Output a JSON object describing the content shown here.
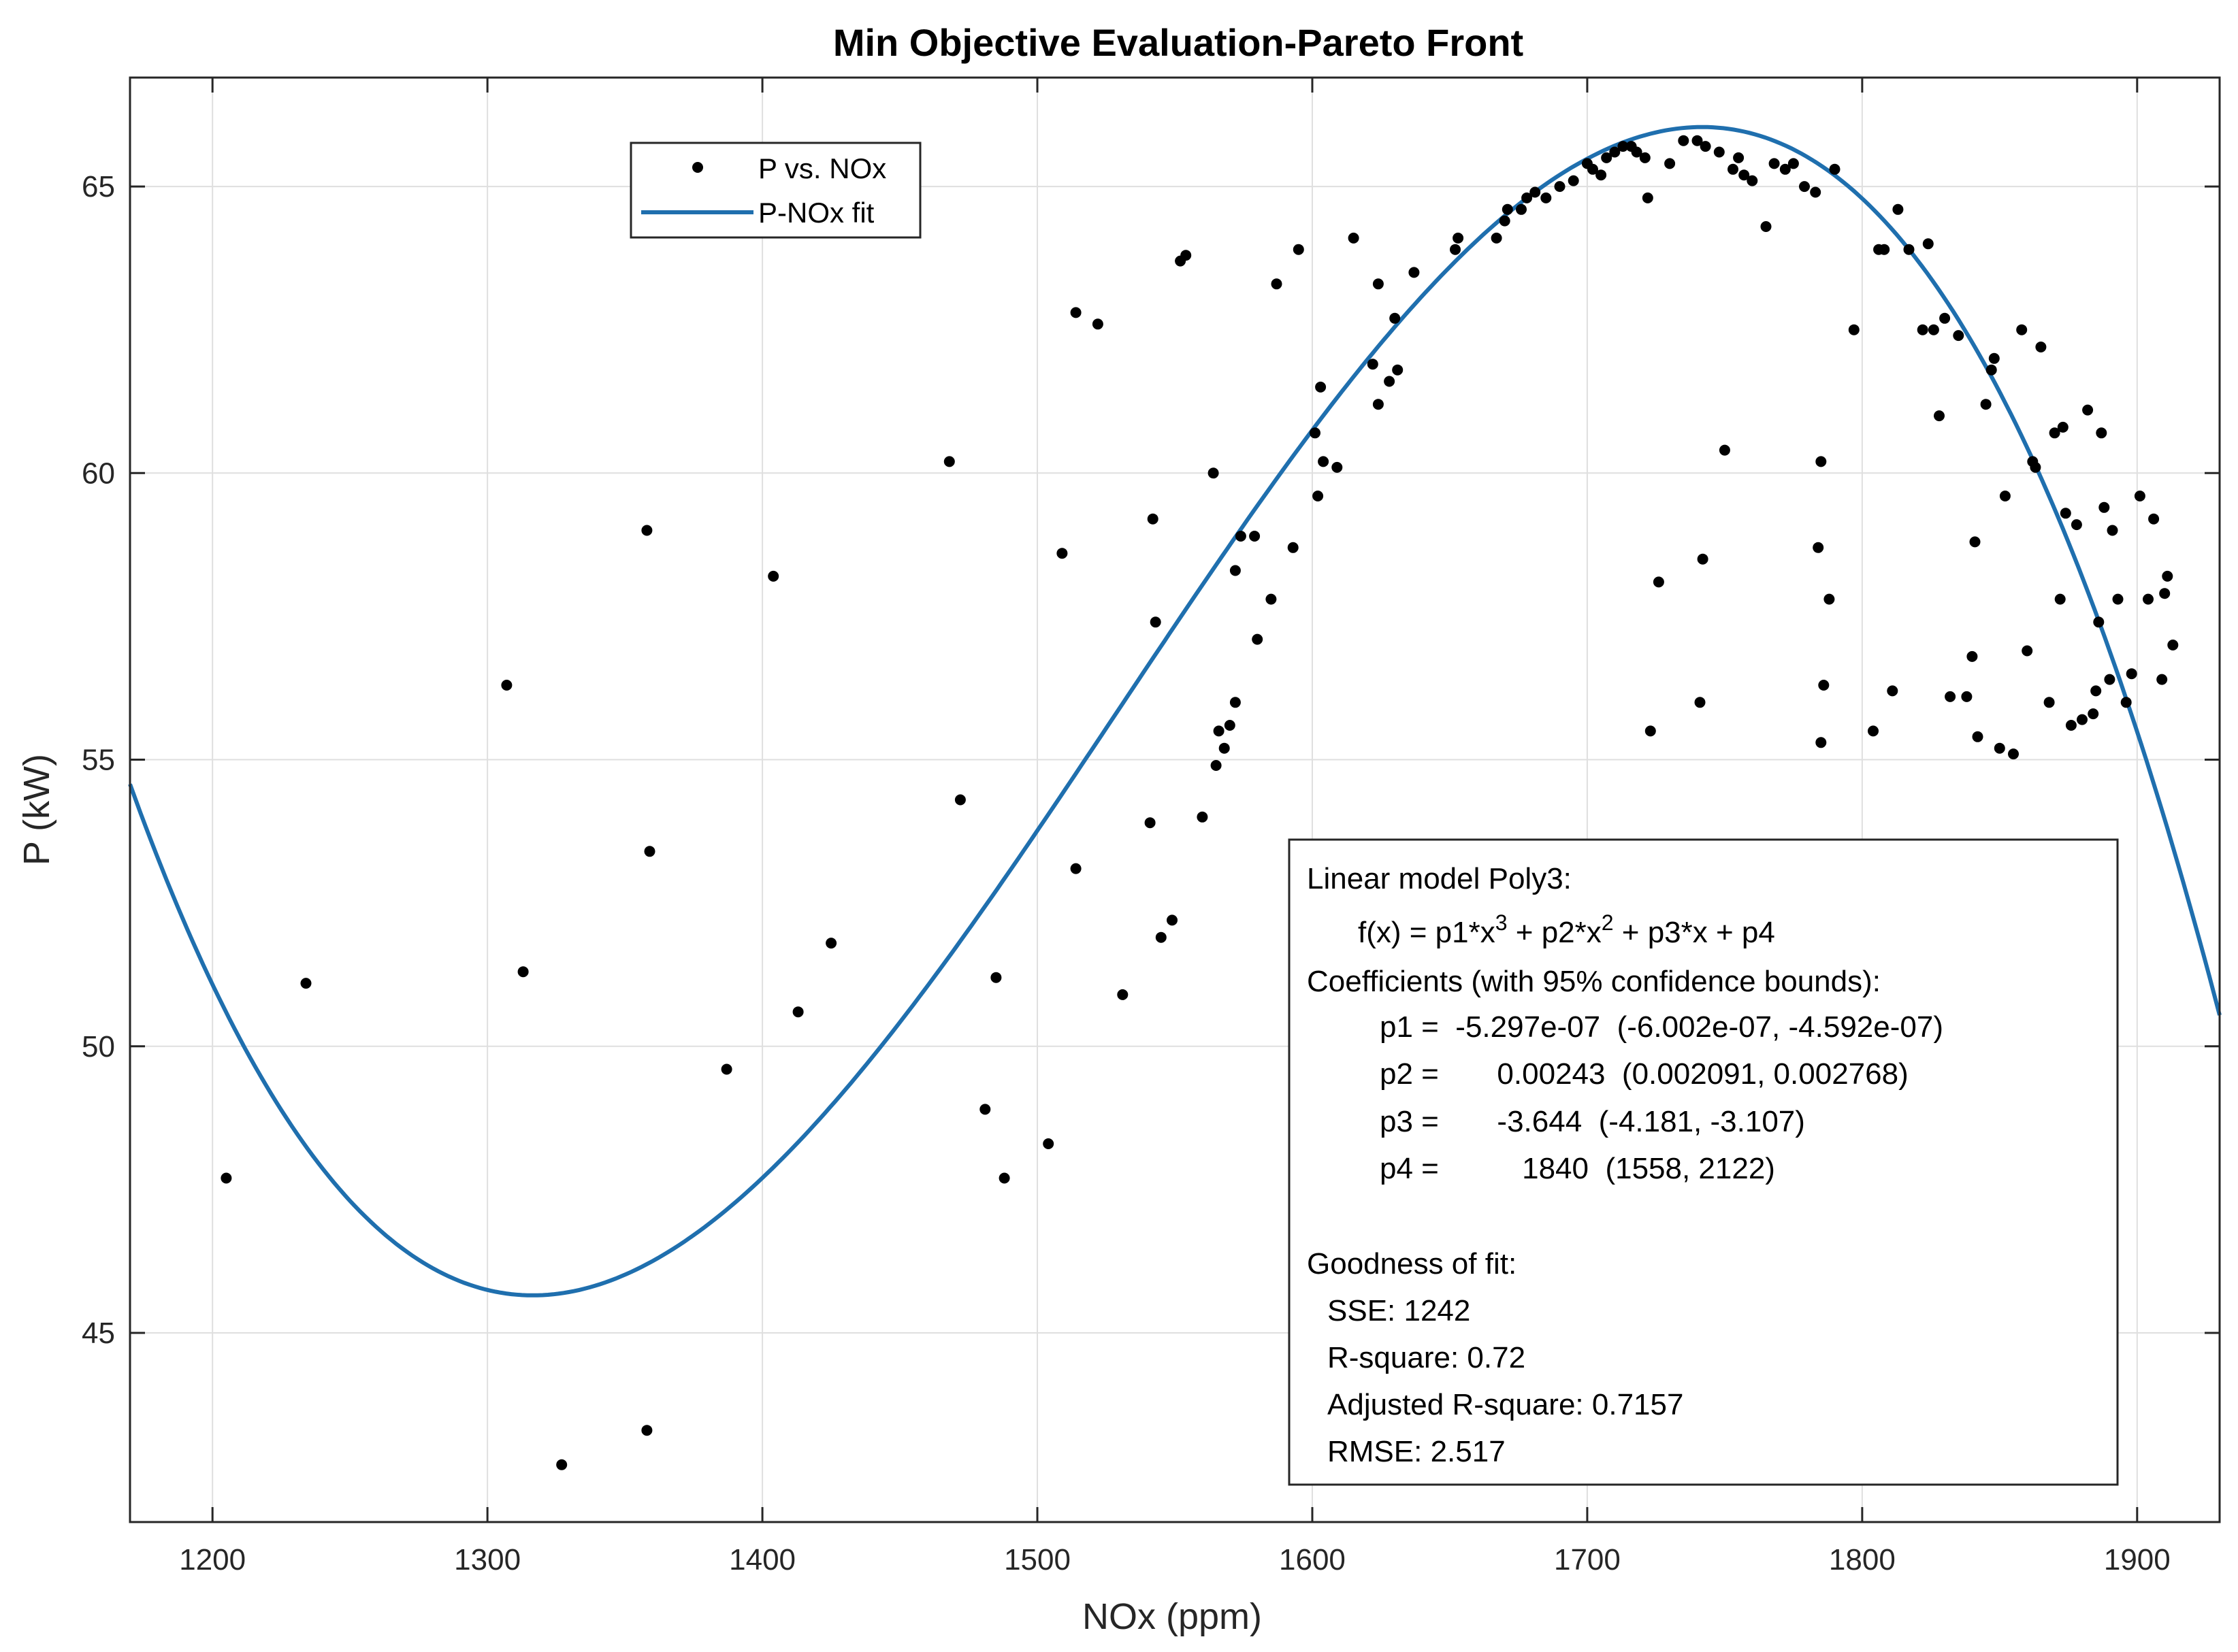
{
  "chart_data": {
    "type": "scatter",
    "title": "Min Objective Evaluation-Pareto Front",
    "xlabel": "NOx (ppm)",
    "ylabel": "P (kW)",
    "xlim": [
      1170,
      1930
    ],
    "ylim": [
      41.7,
      66.9
    ],
    "xticks": [
      "1200",
      "1300",
      "1400",
      "1500",
      "1600",
      "1700",
      "1800",
      "1900"
    ],
    "yticks": [
      "45",
      "50",
      "55",
      "60",
      "65"
    ],
    "grid": true,
    "legend": {
      "placement": "top-left",
      "entries": [
        {
          "label": "P vs. NOx",
          "marker": "dot"
        },
        {
          "label": "P-NOx fit",
          "marker": "line"
        }
      ]
    },
    "colors": {
      "scatter": "#000000",
      "fit": "#1f6fae"
    },
    "fit": {
      "model": "poly3",
      "coefficients": {
        "p1": -5.297e-07,
        "p2": 0.00243,
        "p3": -3.644,
        "p4": 1840
      }
    },
    "series": [
      {
        "name": "P vs. NOx",
        "points": [
          [
            1205,
            47.7
          ],
          [
            1234,
            51.1
          ],
          [
            1307,
            56.3
          ],
          [
            1313,
            51.3
          ],
          [
            1327,
            42.7
          ],
          [
            1358,
            43.3
          ],
          [
            1358,
            59.0
          ],
          [
            1359,
            53.4
          ],
          [
            1387,
            49.6
          ],
          [
            1404,
            58.2
          ],
          [
            1413,
            50.6
          ],
          [
            1425,
            51.8
          ],
          [
            1468,
            60.2
          ],
          [
            1472,
            54.3
          ],
          [
            1481,
            48.9
          ],
          [
            1485,
            51.2
          ],
          [
            1488,
            47.7
          ],
          [
            1504,
            48.3
          ],
          [
            1509,
            58.6
          ],
          [
            1514,
            53.1
          ],
          [
            1514,
            62.8
          ],
          [
            1522,
            62.6
          ],
          [
            1531,
            50.9
          ],
          [
            1541,
            53.9
          ],
          [
            1542,
            59.2
          ],
          [
            1543,
            57.4
          ],
          [
            1545,
            51.9
          ],
          [
            1549,
            52.2
          ],
          [
            1552,
            63.7
          ],
          [
            1554,
            63.8
          ],
          [
            1560,
            54.0
          ],
          [
            1564,
            60.0
          ],
          [
            1566,
            55.5
          ],
          [
            1565,
            54.9
          ],
          [
            1568,
            55.2
          ],
          [
            1570,
            55.6
          ],
          [
            1572,
            56.0
          ],
          [
            1572,
            58.3
          ],
          [
            1574,
            58.9
          ],
          [
            1579,
            58.9
          ],
          [
            1580,
            57.1
          ],
          [
            1585,
            57.8
          ],
          [
            1587,
            63.3
          ],
          [
            1593,
            58.7
          ],
          [
            1595,
            63.9
          ],
          [
            1601,
            60.7
          ],
          [
            1602,
            59.6
          ],
          [
            1603,
            61.5
          ],
          [
            1604,
            60.2
          ],
          [
            1609,
            60.1
          ],
          [
            1615,
            64.1
          ],
          [
            1622,
            61.9
          ],
          [
            1624,
            61.2
          ],
          [
            1624,
            63.3
          ],
          [
            1628,
            61.6
          ],
          [
            1630,
            62.7
          ],
          [
            1631,
            61.8
          ],
          [
            1637,
            63.5
          ],
          [
            1652,
            63.9
          ],
          [
            1653,
            64.1
          ],
          [
            1667,
            64.1
          ],
          [
            1670,
            64.4
          ],
          [
            1671,
            64.6
          ],
          [
            1676,
            64.6
          ],
          [
            1678,
            64.8
          ],
          [
            1681,
            64.9
          ],
          [
            1685,
            64.8
          ],
          [
            1690,
            65.0
          ],
          [
            1695,
            65.1
          ],
          [
            1700,
            65.4
          ],
          [
            1702,
            65.3
          ],
          [
            1705,
            65.2
          ],
          [
            1707,
            65.5
          ],
          [
            1710,
            65.6
          ],
          [
            1713,
            65.7
          ],
          [
            1716,
            65.7
          ],
          [
            1718,
            65.6
          ],
          [
            1721,
            65.5
          ],
          [
            1722,
            64.8
          ],
          [
            1723,
            55.5
          ],
          [
            1726,
            58.1
          ],
          [
            1730,
            65.4
          ],
          [
            1735,
            65.8
          ],
          [
            1740,
            65.8
          ],
          [
            1741,
            56.0
          ],
          [
            1742,
            58.5
          ],
          [
            1743,
            65.7
          ],
          [
            1748,
            65.6
          ],
          [
            1750,
            60.4
          ],
          [
            1753,
            65.3
          ],
          [
            1755,
            65.5
          ],
          [
            1757,
            65.2
          ],
          [
            1760,
            65.1
          ],
          [
            1765,
            64.3
          ],
          [
            1768,
            65.4
          ],
          [
            1772,
            65.3
          ],
          [
            1775,
            65.4
          ],
          [
            1779,
            65.0
          ],
          [
            1783,
            64.9
          ],
          [
            1784,
            58.7
          ],
          [
            1785,
            60.2
          ],
          [
            1785,
            55.3
          ],
          [
            1786,
            56.3
          ],
          [
            1788,
            57.8
          ],
          [
            1790,
            65.3
          ],
          [
            1797,
            62.5
          ],
          [
            1804,
            55.5
          ],
          [
            1806,
            63.9
          ],
          [
            1808,
            63.9
          ],
          [
            1811,
            56.2
          ],
          [
            1813,
            64.6
          ],
          [
            1817,
            63.9
          ],
          [
            1822,
            62.5
          ],
          [
            1824,
            64.0
          ],
          [
            1826,
            62.5
          ],
          [
            1828,
            61.0
          ],
          [
            1830,
            62.7
          ],
          [
            1832,
            56.1
          ],
          [
            1835,
            62.4
          ],
          [
            1838,
            56.1
          ],
          [
            1840,
            56.8
          ],
          [
            1841,
            58.8
          ],
          [
            1842,
            55.4
          ],
          [
            1845,
            61.2
          ],
          [
            1847,
            61.8
          ],
          [
            1848,
            62.0
          ],
          [
            1850,
            55.2
          ],
          [
            1852,
            59.6
          ],
          [
            1855,
            55.1
          ],
          [
            1858,
            62.5
          ],
          [
            1860,
            56.9
          ],
          [
            1862,
            60.2
          ],
          [
            1863,
            60.1
          ],
          [
            1865,
            62.2
          ],
          [
            1868,
            56.0
          ],
          [
            1870,
            60.7
          ],
          [
            1872,
            57.8
          ],
          [
            1873,
            60.8
          ],
          [
            1874,
            59.3
          ],
          [
            1876,
            55.6
          ],
          [
            1878,
            59.1
          ],
          [
            1880,
            55.7
          ],
          [
            1882,
            61.1
          ],
          [
            1884,
            55.8
          ],
          [
            1885,
            56.2
          ],
          [
            1886,
            57.4
          ],
          [
            1887,
            60.7
          ],
          [
            1888,
            59.4
          ],
          [
            1890,
            56.4
          ],
          [
            1891,
            59.0
          ],
          [
            1893,
            57.8
          ],
          [
            1896,
            56.0
          ],
          [
            1898,
            56.5
          ],
          [
            1901,
            59.6
          ],
          [
            1904,
            57.8
          ],
          [
            1906,
            59.2
          ],
          [
            1909,
            56.4
          ],
          [
            1910,
            57.9
          ],
          [
            1911,
            58.2
          ],
          [
            1913,
            57.0
          ]
        ]
      },
      {
        "name": "P-NOx fit",
        "x_range": [
          1170,
          1930
        ]
      }
    ],
    "annotation": {
      "lines": [
        "Linear model Poly3:",
        "f(x) = p1*x",
        "3",
        " + p2*x",
        "2",
        " + p3*x + p4",
        "Coefficients (with 95% confidence bounds):",
        "p1 =  -5.297e-07  (-6.002e-07, -4.592e-07)",
        "p2 =       0.00243  (0.002091, 0.002768)",
        "p3 =       -3.644  (-4.181, -3.107)",
        "p4 =          1840  (1558, 2122)",
        "Goodness of fit:",
        "SSE: 1242",
        "R-square: 0.72",
        "Adjusted R-square: 0.7157",
        "RMSE: 2.517"
      ]
    }
  }
}
